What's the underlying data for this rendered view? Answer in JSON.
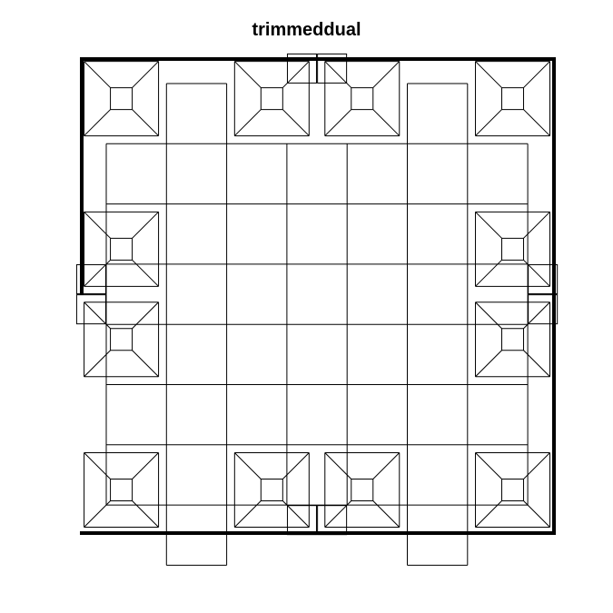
{
  "title": "trimmeddual",
  "colors": {
    "edge": "#000000",
    "border": "#000000",
    "background": "#ffffff"
  },
  "mesh": {
    "grid_size": 9,
    "corner_rings": [
      [
        1,
        1
      ],
      [
        4,
        1
      ],
      [
        5,
        1
      ],
      [
        7,
        1
      ],
      [
        1,
        3
      ],
      [
        7,
        3
      ],
      [
        1,
        5
      ],
      [
        7,
        5
      ],
      [
        1,
        7
      ],
      [
        4,
        7
      ],
      [
        5,
        7
      ],
      [
        7,
        7
      ]
    ]
  }
}
